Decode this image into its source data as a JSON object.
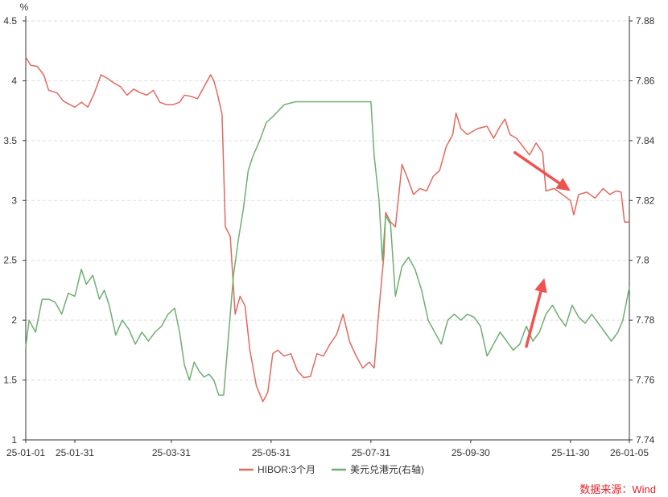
{
  "chart_data": {
    "type": "line",
    "left_unit": "%",
    "x_tick_labels": [
      "25-01-01",
      "25-01-31",
      "25-03-31",
      "25-05-31",
      "25-07-31",
      "25-09-30",
      "25-11-30",
      "26-01-05"
    ],
    "left_axis": {
      "ylim": [
        1,
        4.5
      ],
      "ticks": [
        "1",
        "1.5",
        "2",
        "2.5",
        "3",
        "3.5",
        "4",
        "4.5"
      ]
    },
    "right_axis": {
      "ylim": [
        7.74,
        7.88
      ],
      "ticks": [
        "7.74",
        "7.76",
        "7.78",
        "7.8",
        "7.82",
        "7.84",
        "7.86",
        "7.88"
      ]
    },
    "grid": "horizontal dashed",
    "legend_position": "bottom",
    "source_note": "数据来源：Wind",
    "series": [
      {
        "name": "HIBOR:3个月",
        "axis": "left",
        "color": "#e06a5e",
        "points": [
          [
            "2025-01-01",
            4.2
          ],
          [
            "2025-01-04",
            4.13
          ],
          [
            "2025-01-08",
            4.12
          ],
          [
            "2025-01-12",
            4.05
          ],
          [
            "2025-01-15",
            3.92
          ],
          [
            "2025-01-20",
            3.9
          ],
          [
            "2025-01-24",
            3.83
          ],
          [
            "2025-01-28",
            3.8
          ],
          [
            "2025-01-31",
            3.78
          ],
          [
            "2025-02-04",
            3.82
          ],
          [
            "2025-02-08",
            3.78
          ],
          [
            "2025-02-12",
            3.9
          ],
          [
            "2025-02-16",
            4.05
          ],
          [
            "2025-02-20",
            4.02
          ],
          [
            "2025-02-24",
            3.98
          ],
          [
            "2025-02-28",
            3.95
          ],
          [
            "2025-03-04",
            3.88
          ],
          [
            "2025-03-08",
            3.93
          ],
          [
            "2025-03-12",
            3.9
          ],
          [
            "2025-03-16",
            3.88
          ],
          [
            "2025-03-20",
            3.92
          ],
          [
            "2025-03-24",
            3.82
          ],
          [
            "2025-03-28",
            3.8
          ],
          [
            "2025-04-01",
            3.8
          ],
          [
            "2025-04-05",
            3.82
          ],
          [
            "2025-04-08",
            3.88
          ],
          [
            "2025-04-12",
            3.87
          ],
          [
            "2025-04-16",
            3.85
          ],
          [
            "2025-04-20",
            3.95
          ],
          [
            "2025-04-24",
            4.05
          ],
          [
            "2025-04-26",
            4.0
          ],
          [
            "2025-04-28",
            3.9
          ],
          [
            "2025-05-01",
            3.72
          ],
          [
            "2025-05-03",
            2.78
          ],
          [
            "2025-05-06",
            2.7
          ],
          [
            "2025-05-09",
            2.05
          ],
          [
            "2025-05-12",
            2.2
          ],
          [
            "2025-05-15",
            2.12
          ],
          [
            "2025-05-18",
            1.75
          ],
          [
            "2025-05-22",
            1.45
          ],
          [
            "2025-05-26",
            1.32
          ],
          [
            "2025-05-29",
            1.4
          ],
          [
            "2025-06-01",
            1.72
          ],
          [
            "2025-06-04",
            1.75
          ],
          [
            "2025-06-08",
            1.7
          ],
          [
            "2025-06-12",
            1.72
          ],
          [
            "2025-06-16",
            1.58
          ],
          [
            "2025-06-20",
            1.52
          ],
          [
            "2025-06-24",
            1.53
          ],
          [
            "2025-06-28",
            1.72
          ],
          [
            "2025-07-02",
            1.7
          ],
          [
            "2025-07-06",
            1.8
          ],
          [
            "2025-07-10",
            1.88
          ],
          [
            "2025-07-14",
            2.05
          ],
          [
            "2025-07-18",
            1.82
          ],
          [
            "2025-07-22",
            1.7
          ],
          [
            "2025-07-26",
            1.6
          ],
          [
            "2025-07-30",
            1.65
          ],
          [
            "2025-08-02",
            1.6
          ],
          [
            "2025-08-05",
            2.1
          ],
          [
            "2025-08-08",
            2.55
          ],
          [
            "2025-08-09",
            2.9
          ],
          [
            "2025-08-12",
            2.82
          ],
          [
            "2025-08-15",
            2.78
          ],
          [
            "2025-08-19",
            3.3
          ],
          [
            "2025-08-22",
            3.2
          ],
          [
            "2025-08-26",
            3.05
          ],
          [
            "2025-08-30",
            3.1
          ],
          [
            "2025-09-03",
            3.08
          ],
          [
            "2025-09-07",
            3.2
          ],
          [
            "2025-09-11",
            3.25
          ],
          [
            "2025-09-15",
            3.45
          ],
          [
            "2025-09-19",
            3.55
          ],
          [
            "2025-09-21",
            3.73
          ],
          [
            "2025-09-24",
            3.6
          ],
          [
            "2025-09-28",
            3.55
          ],
          [
            "2025-10-04",
            3.6
          ],
          [
            "2025-10-10",
            3.62
          ],
          [
            "2025-10-14",
            3.52
          ],
          [
            "2025-10-18",
            3.62
          ],
          [
            "2025-10-21",
            3.68
          ],
          [
            "2025-10-24",
            3.55
          ],
          [
            "2025-10-28",
            3.52
          ],
          [
            "2025-11-01",
            3.45
          ],
          [
            "2025-11-05",
            3.38
          ],
          [
            "2025-11-09",
            3.48
          ],
          [
            "2025-11-13",
            3.4
          ],
          [
            "2025-11-15",
            3.08
          ],
          [
            "2025-11-20",
            3.1
          ],
          [
            "2025-11-25",
            3.05
          ],
          [
            "2025-11-30",
            3.0
          ],
          [
            "2025-12-02",
            2.88
          ],
          [
            "2025-12-05",
            3.05
          ],
          [
            "2025-12-10",
            3.07
          ],
          [
            "2025-12-15",
            3.02
          ],
          [
            "2025-12-20",
            3.1
          ],
          [
            "2025-12-24",
            3.05
          ],
          [
            "2025-12-28",
            3.08
          ],
          [
            "2025-12-31",
            3.07
          ],
          [
            "2026-01-02",
            2.82
          ],
          [
            "2026-01-05",
            2.82
          ]
        ]
      },
      {
        "name": "美元兑港元(右轴)",
        "axis": "right",
        "color": "#6fae72",
        "points": [
          [
            "2025-01-01",
            7.771
          ],
          [
            "2025-01-03",
            7.78
          ],
          [
            "2025-01-07",
            7.776
          ],
          [
            "2025-01-11",
            7.787
          ],
          [
            "2025-01-15",
            7.787
          ],
          [
            "2025-01-19",
            7.786
          ],
          [
            "2025-01-23",
            7.782
          ],
          [
            "2025-01-27",
            7.789
          ],
          [
            "2025-01-31",
            7.788
          ],
          [
            "2025-02-04",
            7.797
          ],
          [
            "2025-02-07",
            7.792
          ],
          [
            "2025-02-11",
            7.795
          ],
          [
            "2025-02-15",
            7.787
          ],
          [
            "2025-02-18",
            7.79
          ],
          [
            "2025-02-21",
            7.785
          ],
          [
            "2025-02-25",
            7.775
          ],
          [
            "2025-03-01",
            7.78
          ],
          [
            "2025-03-05",
            7.777
          ],
          [
            "2025-03-09",
            7.772
          ],
          [
            "2025-03-13",
            7.776
          ],
          [
            "2025-03-17",
            7.773
          ],
          [
            "2025-03-21",
            7.776
          ],
          [
            "2025-03-25",
            7.778
          ],
          [
            "2025-03-29",
            7.782
          ],
          [
            "2025-04-02",
            7.784
          ],
          [
            "2025-04-05",
            7.776
          ],
          [
            "2025-04-08",
            7.765
          ],
          [
            "2025-04-11",
            7.76
          ],
          [
            "2025-04-14",
            7.766
          ],
          [
            "2025-04-17",
            7.763
          ],
          [
            "2025-04-20",
            7.761
          ],
          [
            "2025-04-23",
            7.762
          ],
          [
            "2025-04-26",
            7.76
          ],
          [
            "2025-04-29",
            7.755
          ],
          [
            "2025-05-02",
            7.755
          ],
          [
            "2025-05-05",
            7.775
          ],
          [
            "2025-05-08",
            7.795
          ],
          [
            "2025-05-11",
            7.807
          ],
          [
            "2025-05-14",
            7.817
          ],
          [
            "2025-05-17",
            7.83
          ],
          [
            "2025-05-20",
            7.835
          ],
          [
            "2025-05-24",
            7.84
          ],
          [
            "2025-05-28",
            7.846
          ],
          [
            "2025-06-01",
            7.848
          ],
          [
            "2025-06-08",
            7.852
          ],
          [
            "2025-06-15",
            7.853
          ],
          [
            "2025-06-22",
            7.853
          ],
          [
            "2025-06-29",
            7.853
          ],
          [
            "2025-07-06",
            7.853
          ],
          [
            "2025-07-13",
            7.853
          ],
          [
            "2025-07-20",
            7.853
          ],
          [
            "2025-07-27",
            7.853
          ],
          [
            "2025-07-31",
            7.853
          ],
          [
            "2025-08-02",
            7.835
          ],
          [
            "2025-08-05",
            7.82
          ],
          [
            "2025-08-07",
            7.8
          ],
          [
            "2025-08-09",
            7.815
          ],
          [
            "2025-08-12",
            7.812
          ],
          [
            "2025-08-15",
            7.788
          ],
          [
            "2025-08-19",
            7.798
          ],
          [
            "2025-08-23",
            7.801
          ],
          [
            "2025-08-27",
            7.797
          ],
          [
            "2025-08-31",
            7.79
          ],
          [
            "2025-09-04",
            7.78
          ],
          [
            "2025-09-08",
            7.776
          ],
          [
            "2025-09-12",
            7.772
          ],
          [
            "2025-09-16",
            7.78
          ],
          [
            "2025-09-20",
            7.782
          ],
          [
            "2025-09-24",
            7.78
          ],
          [
            "2025-09-28",
            7.782
          ],
          [
            "2025-10-02",
            7.781
          ],
          [
            "2025-10-06",
            7.778
          ],
          [
            "2025-10-10",
            7.768
          ],
          [
            "2025-10-14",
            7.772
          ],
          [
            "2025-10-18",
            7.776
          ],
          [
            "2025-10-22",
            7.773
          ],
          [
            "2025-10-26",
            7.77
          ],
          [
            "2025-10-30",
            7.772
          ],
          [
            "2025-11-03",
            7.778
          ],
          [
            "2025-11-07",
            7.773
          ],
          [
            "2025-11-11",
            7.776
          ],
          [
            "2025-11-15",
            7.782
          ],
          [
            "2025-11-19",
            7.785
          ],
          [
            "2025-11-23",
            7.781
          ],
          [
            "2025-11-27",
            7.778
          ],
          [
            "2025-12-01",
            7.785
          ],
          [
            "2025-12-05",
            7.781
          ],
          [
            "2025-12-09",
            7.779
          ],
          [
            "2025-12-13",
            7.782
          ],
          [
            "2025-12-17",
            7.779
          ],
          [
            "2025-12-21",
            7.776
          ],
          [
            "2025-12-25",
            7.773
          ],
          [
            "2025-12-29",
            7.776
          ],
          [
            "2026-01-01",
            7.78
          ],
          [
            "2026-01-05",
            7.791
          ]
        ]
      }
    ],
    "annotations": [
      {
        "type": "arrow",
        "color": "#f0524f",
        "from": [
          "2025-10-27",
          3.4
        ],
        "to": [
          "2025-11-30",
          3.08
        ],
        "meaning": "HIBOR falling"
      },
      {
        "type": "arrow",
        "color": "#f0524f",
        "from": [
          "2025-11-03",
          1.78
        ],
        "to": [
          "2025-11-14",
          2.35
        ],
        "meaning": "USD/HKD rising"
      }
    ]
  }
}
